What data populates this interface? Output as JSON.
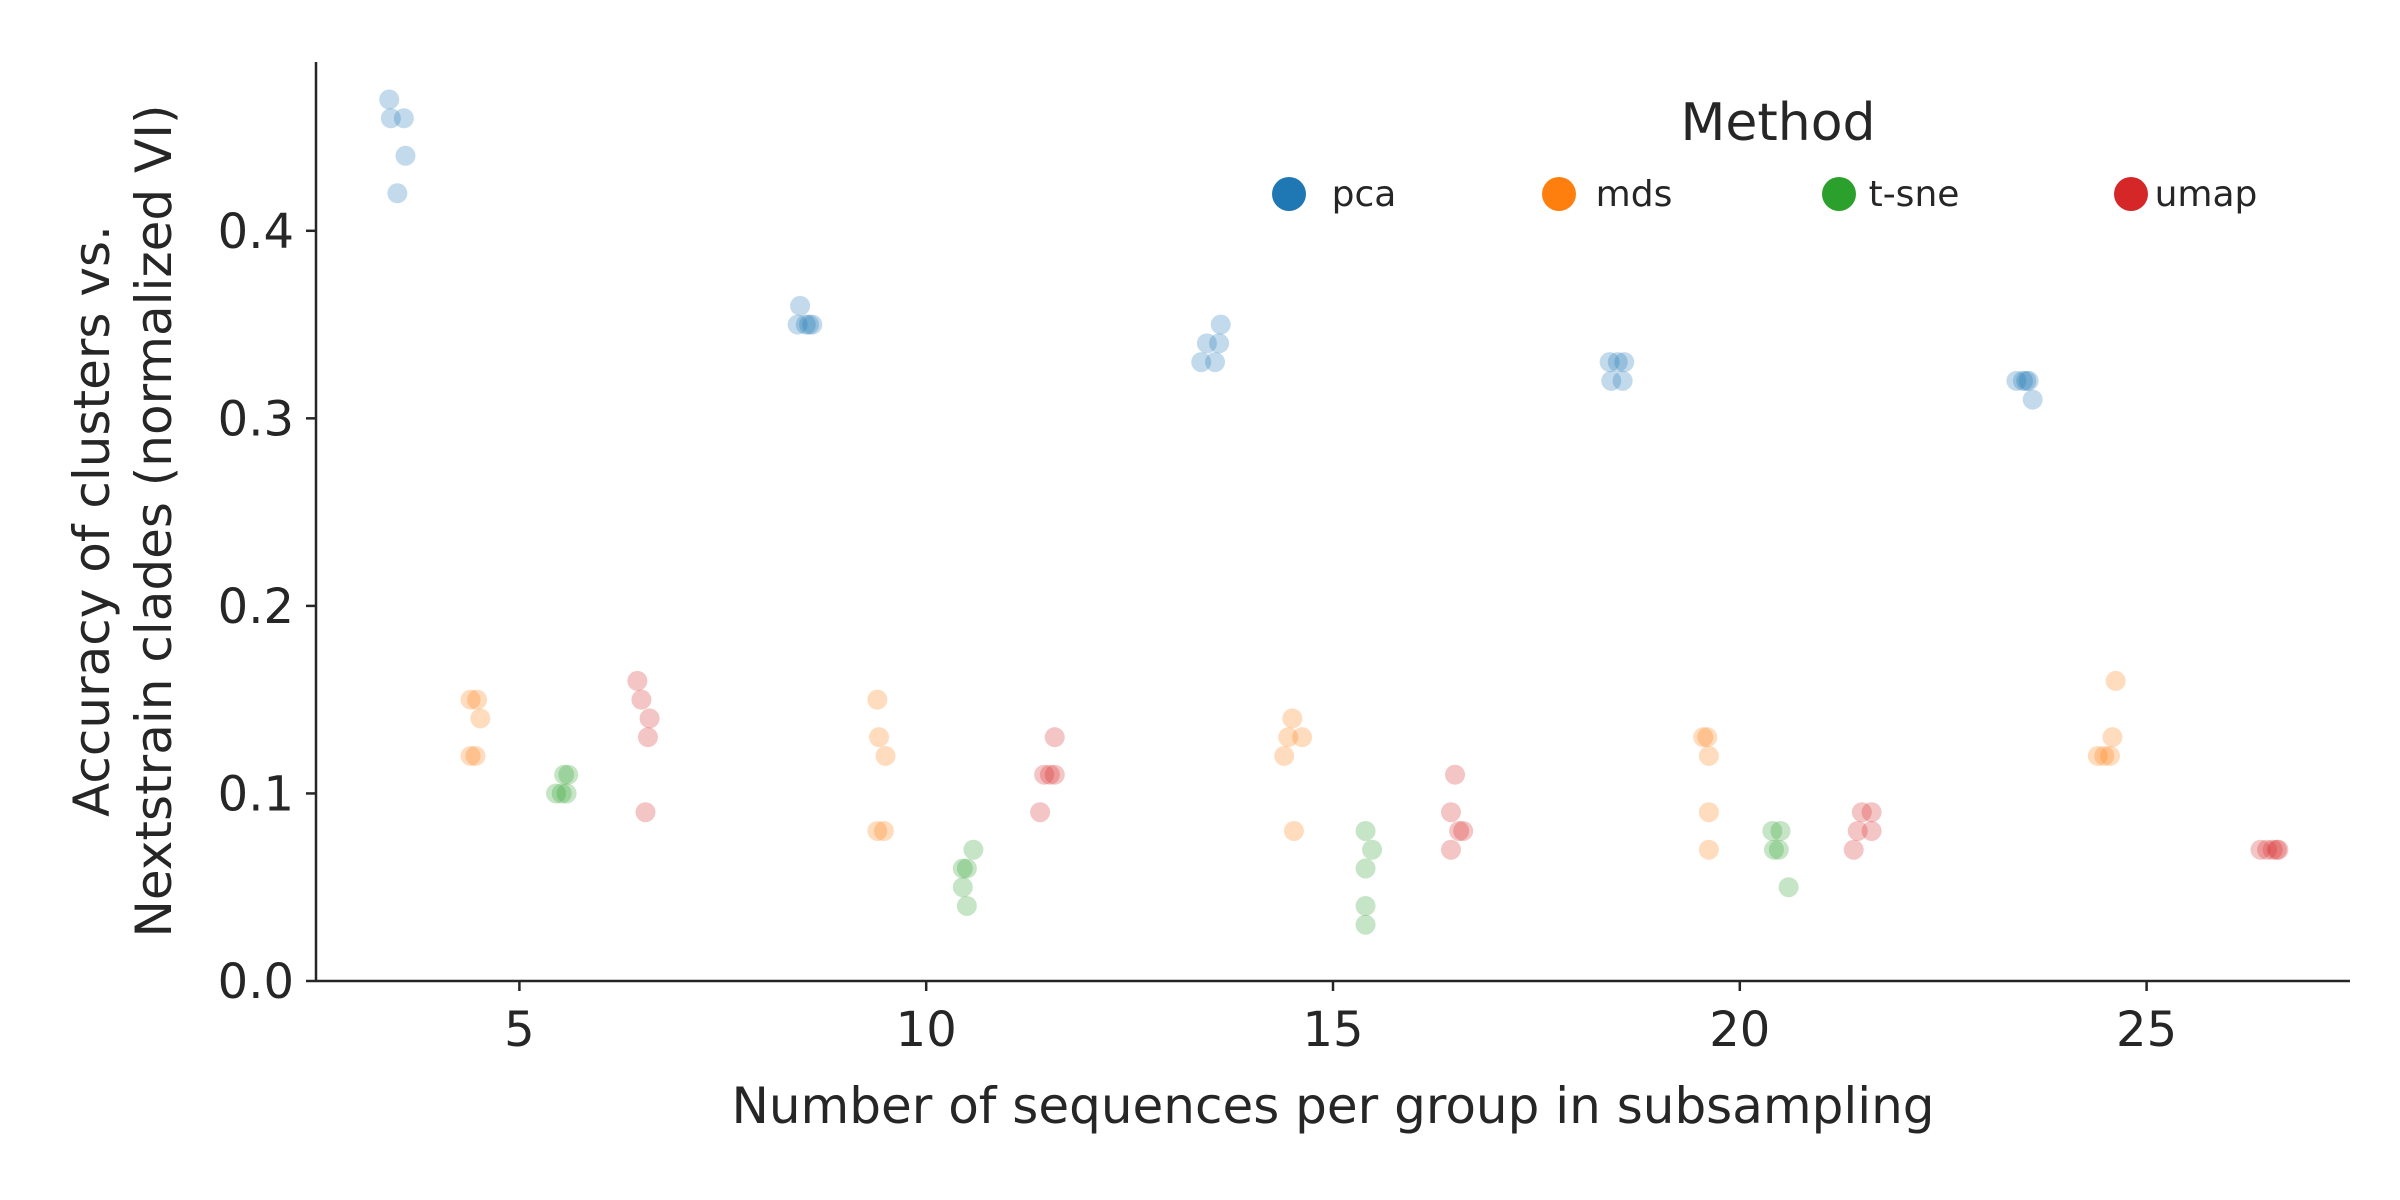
{
  "chart_data": {
    "type": "scatter",
    "title": "",
    "xlabel": "Number of sequences per group in subsampling",
    "ylabel_lines": [
      "Accuracy of clusters vs.",
      "Nextstrain clades (normalized VI)"
    ],
    "xlim": [
      2.5,
      27.5
    ],
    "ylim": [
      0.0,
      0.49
    ],
    "xticks": [
      5,
      10,
      15,
      20,
      25
    ],
    "xtick_labels": [
      "5",
      "10",
      "15",
      "20",
      "25"
    ],
    "yticks": [
      0.0,
      0.1,
      0.2,
      0.3,
      0.4
    ],
    "ytick_labels": [
      "0.0",
      "0.1",
      "0.2",
      "0.3",
      "0.4"
    ],
    "grid": false,
    "legend": {
      "title": "Method",
      "placement": "top-right",
      "entries": [
        "pca",
        "mds",
        "t-sne",
        "umap"
      ]
    },
    "series": [
      {
        "name": "pca",
        "color": "#1f77b4",
        "points": [
          {
            "x": 3.4,
            "y": 0.47
          },
          {
            "x": 3.42,
            "y": 0.46
          },
          {
            "x": 3.58,
            "y": 0.46
          },
          {
            "x": 3.6,
            "y": 0.44
          },
          {
            "x": 3.5,
            "y": 0.42
          },
          {
            "x": 8.45,
            "y": 0.36
          },
          {
            "x": 8.42,
            "y": 0.35
          },
          {
            "x": 8.52,
            "y": 0.35
          },
          {
            "x": 8.56,
            "y": 0.35
          },
          {
            "x": 8.6,
            "y": 0.35
          },
          {
            "x": 13.62,
            "y": 0.35
          },
          {
            "x": 13.45,
            "y": 0.34
          },
          {
            "x": 13.6,
            "y": 0.34
          },
          {
            "x": 13.38,
            "y": 0.33
          },
          {
            "x": 13.55,
            "y": 0.33
          },
          {
            "x": 18.4,
            "y": 0.33
          },
          {
            "x": 18.5,
            "y": 0.33
          },
          {
            "x": 18.58,
            "y": 0.33
          },
          {
            "x": 18.42,
            "y": 0.32
          },
          {
            "x": 18.56,
            "y": 0.32
          },
          {
            "x": 23.4,
            "y": 0.32
          },
          {
            "x": 23.48,
            "y": 0.32
          },
          {
            "x": 23.52,
            "y": 0.32
          },
          {
            "x": 23.55,
            "y": 0.32
          },
          {
            "x": 23.6,
            "y": 0.31
          }
        ]
      },
      {
        "name": "mds",
        "color": "#ff7f0e",
        "points": [
          {
            "x": 4.4,
            "y": 0.15
          },
          {
            "x": 4.48,
            "y": 0.15
          },
          {
            "x": 4.52,
            "y": 0.14
          },
          {
            "x": 4.4,
            "y": 0.12
          },
          {
            "x": 4.46,
            "y": 0.12
          },
          {
            "x": 9.4,
            "y": 0.15
          },
          {
            "x": 9.42,
            "y": 0.13
          },
          {
            "x": 9.5,
            "y": 0.12
          },
          {
            "x": 9.4,
            "y": 0.08
          },
          {
            "x": 9.48,
            "y": 0.08
          },
          {
            "x": 14.5,
            "y": 0.14
          },
          {
            "x": 14.45,
            "y": 0.13
          },
          {
            "x": 14.62,
            "y": 0.13
          },
          {
            "x": 14.4,
            "y": 0.12
          },
          {
            "x": 14.52,
            "y": 0.08
          },
          {
            "x": 19.55,
            "y": 0.13
          },
          {
            "x": 19.6,
            "y": 0.13
          },
          {
            "x": 19.62,
            "y": 0.12
          },
          {
            "x": 19.62,
            "y": 0.09
          },
          {
            "x": 19.62,
            "y": 0.07
          },
          {
            "x": 24.4,
            "y": 0.12
          },
          {
            "x": 24.48,
            "y": 0.12
          },
          {
            "x": 24.55,
            "y": 0.12
          },
          {
            "x": 24.58,
            "y": 0.13
          },
          {
            "x": 24.62,
            "y": 0.16
          }
        ]
      },
      {
        "name": "t-sne",
        "color": "#2ca02c",
        "points": [
          {
            "x": 5.45,
            "y": 0.1
          },
          {
            "x": 5.52,
            "y": 0.1
          },
          {
            "x": 5.58,
            "y": 0.1
          },
          {
            "x": 5.55,
            "y": 0.11
          },
          {
            "x": 5.6,
            "y": 0.11
          },
          {
            "x": 10.45,
            "y": 0.06
          },
          {
            "x": 10.5,
            "y": 0.06
          },
          {
            "x": 10.58,
            "y": 0.07
          },
          {
            "x": 10.45,
            "y": 0.05
          },
          {
            "x": 10.5,
            "y": 0.04
          },
          {
            "x": 15.4,
            "y": 0.08
          },
          {
            "x": 15.48,
            "y": 0.07
          },
          {
            "x": 15.4,
            "y": 0.06
          },
          {
            "x": 15.4,
            "y": 0.04
          },
          {
            "x": 15.4,
            "y": 0.03
          },
          {
            "x": 20.4,
            "y": 0.08
          },
          {
            "x": 20.5,
            "y": 0.08
          },
          {
            "x": 20.42,
            "y": 0.07
          },
          {
            "x": 20.48,
            "y": 0.07
          },
          {
            "x": 20.6,
            "y": 0.05
          }
        ]
      },
      {
        "name": "umap",
        "color": "#d62728",
        "points": [
          {
            "x": 6.45,
            "y": 0.16
          },
          {
            "x": 6.5,
            "y": 0.15
          },
          {
            "x": 6.6,
            "y": 0.14
          },
          {
            "x": 6.58,
            "y": 0.13
          },
          {
            "x": 6.55,
            "y": 0.09
          },
          {
            "x": 11.58,
            "y": 0.13
          },
          {
            "x": 11.45,
            "y": 0.11
          },
          {
            "x": 11.52,
            "y": 0.11
          },
          {
            "x": 11.58,
            "y": 0.11
          },
          {
            "x": 11.4,
            "y": 0.09
          },
          {
            "x": 16.5,
            "y": 0.11
          },
          {
            "x": 16.45,
            "y": 0.09
          },
          {
            "x": 16.55,
            "y": 0.08
          },
          {
            "x": 16.6,
            "y": 0.08
          },
          {
            "x": 16.45,
            "y": 0.07
          },
          {
            "x": 21.5,
            "y": 0.09
          },
          {
            "x": 21.62,
            "y": 0.09
          },
          {
            "x": 21.45,
            "y": 0.08
          },
          {
            "x": 21.62,
            "y": 0.08
          },
          {
            "x": 21.4,
            "y": 0.07
          },
          {
            "x": 26.4,
            "y": 0.07
          },
          {
            "x": 26.48,
            "y": 0.07
          },
          {
            "x": 26.55,
            "y": 0.07
          },
          {
            "x": 26.6,
            "y": 0.07
          },
          {
            "x": 26.62,
            "y": 0.07
          }
        ]
      }
    ]
  }
}
